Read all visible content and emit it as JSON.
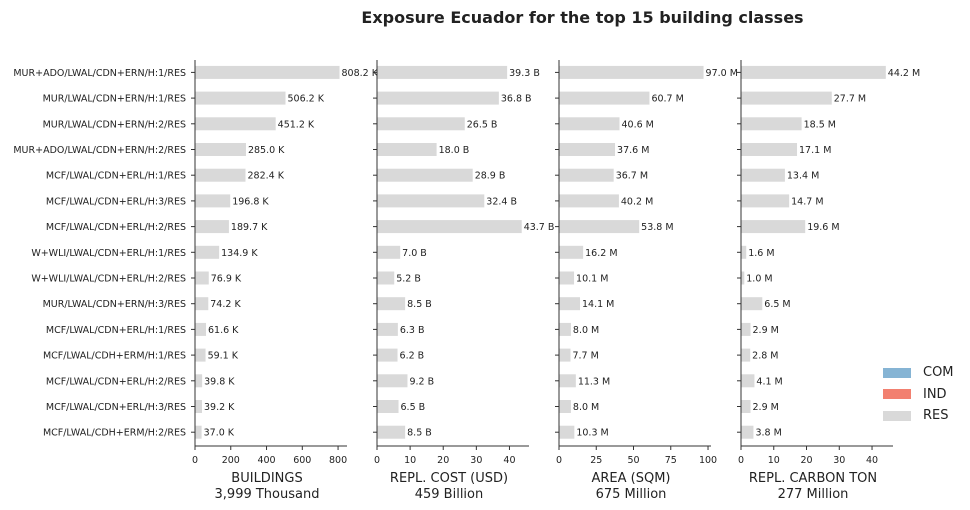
{
  "chart_data": {
    "type": "bar",
    "orientation": "horizontal",
    "stacked": true,
    "title": "Exposure Ecuador for the top 15 building classes",
    "categories": [
      "MUR+ADO/LWAL/CDN+ERN/H:1/RES",
      "MUR/LWAL/CDN+ERN/H:1/RES",
      "MUR/LWAL/CDN+ERN/H:2/RES",
      "MUR+ADO/LWAL/CDN+ERN/H:2/RES",
      "MCF/LWAL/CDN+ERL/H:1/RES",
      "MCF/LWAL/CDN+ERL/H:3/RES",
      "MCF/LWAL/CDN+ERL/H:2/RES",
      "W+WLI/LWAL/CDN+ERL/H:1/RES",
      "W+WLI/LWAL/CDN+ERL/H:2/RES",
      "MUR/LWAL/CDN+ERN/H:3/RES",
      "MCF/LWAL/CDN+ERL/H:1/RES",
      "MCF/LWAL/CDH+ERM/H:1/RES",
      "MCF/LWAL/CDN+ERL/H:2/RES",
      "MCF/LWAL/CDN+ERL/H:3/RES",
      "MCF/LWAL/CDH+ERM/H:2/RES"
    ],
    "legend": {
      "position": "right",
      "entries": [
        {
          "name": "COM",
          "color": "#86b4d4"
        },
        {
          "name": "IND",
          "color": "#f28070"
        },
        {
          "name": "RES",
          "color": "#d9d9d9"
        }
      ]
    },
    "panels": [
      {
        "xlabel": "BUILDINGS",
        "total_label": "3,999 Thousand",
        "xlim": [
          0,
          850
        ],
        "ticks": [
          0,
          200,
          400,
          600,
          800
        ],
        "values": [
          808.2,
          506.2,
          451.2,
          285.0,
          282.4,
          196.8,
          189.7,
          134.9,
          76.9,
          74.2,
          61.6,
          59.1,
          39.8,
          39.2,
          37.0
        ],
        "labels": [
          "808.2 K",
          "506.2 K",
          "451.2 K",
          "285.0 K",
          "282.4 K",
          "196.8 K",
          "189.7 K",
          "134.9 K",
          "76.9 K",
          "74.2 K",
          "61.6 K",
          "59.1 K",
          "39.8 K",
          "39.2 K",
          "37.0 K"
        ]
      },
      {
        "xlabel": "REPL. COST (USD)",
        "total_label": "459 Billion",
        "xlim": [
          0,
          45.9
        ],
        "ticks": [
          0,
          10,
          20,
          30,
          40
        ],
        "values": [
          39.3,
          36.8,
          26.5,
          18.0,
          28.9,
          32.4,
          43.7,
          7.0,
          5.2,
          8.5,
          6.3,
          6.2,
          9.2,
          6.5,
          8.5
        ],
        "labels": [
          "39.3 B",
          "36.8 B",
          "26.5 B",
          "18.0 B",
          "28.9 B",
          "32.4 B",
          "43.7 B",
          "7.0 B",
          "5.2 B",
          "8.5 B",
          "6.3 B",
          "6.2 B",
          "9.2 B",
          "6.5 B",
          "8.5 B"
        ]
      },
      {
        "xlabel": "AREA (SQM)",
        "total_label": "675 Million",
        "xlim": [
          0,
          102
        ],
        "ticks": [
          0,
          25,
          50,
          75,
          100
        ],
        "values": [
          97.0,
          60.7,
          40.6,
          37.6,
          36.7,
          40.2,
          53.8,
          16.2,
          10.1,
          14.1,
          8.0,
          7.7,
          11.3,
          8.0,
          10.3
        ],
        "labels": [
          "97.0 M",
          "60.7 M",
          "40.6 M",
          "37.6 M",
          "36.7 M",
          "40.2 M",
          "53.8 M",
          "16.2 M",
          "10.1 M",
          "14.1 M",
          "8.0 M",
          "7.7 M",
          "11.3 M",
          "8.0 M",
          "10.3 M"
        ]
      },
      {
        "xlabel": "REPL. CARBON TON",
        "total_label": "277 Million",
        "xlim": [
          0,
          46.4
        ],
        "ticks": [
          0,
          10,
          20,
          30,
          40
        ],
        "values": [
          44.2,
          27.7,
          18.5,
          17.1,
          13.4,
          14.7,
          19.6,
          1.6,
          1.0,
          6.5,
          2.9,
          2.8,
          4.1,
          2.9,
          3.8
        ],
        "labels": [
          "44.2 M",
          "27.7 M",
          "18.5 M",
          "17.1 M",
          "13.4 M",
          "14.7 M",
          "19.6 M",
          "1.6 M",
          "1.0 M",
          "6.5 M",
          "2.9 M",
          "2.8 M",
          "4.1 M",
          "2.9 M",
          "3.8 M"
        ]
      }
    ]
  }
}
